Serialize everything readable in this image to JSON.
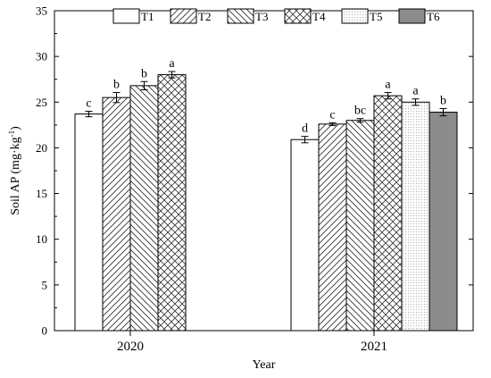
{
  "chart_data": {
    "type": "bar",
    "xlabel": "Year",
    "ylabel": "Soil AP (mg·kg",
    "ylabel_sup": "-1",
    "ylabel_close": ")",
    "ylim": [
      0,
      35
    ],
    "yticks": [
      0,
      5,
      10,
      15,
      20,
      25,
      30,
      35
    ],
    "categories": [
      "2020",
      "2021"
    ],
    "legend_placement": "top",
    "series": [
      {
        "name": "T1",
        "pattern": "none",
        "values": [
          23.7,
          20.9
        ],
        "errors": [
          0.3,
          0.35
        ],
        "letters": [
          "c",
          "d"
        ]
      },
      {
        "name": "T2",
        "pattern": "diag-up",
        "values": [
          25.5,
          22.6
        ],
        "errors": [
          0.55,
          0.15
        ],
        "letters": [
          "b",
          "c"
        ]
      },
      {
        "name": "T3",
        "pattern": "diag-down",
        "values": [
          26.8,
          23.0
        ],
        "errors": [
          0.45,
          0.2
        ],
        "letters": [
          "b",
          "bc"
        ]
      },
      {
        "name": "T4",
        "pattern": "crosshatch",
        "values": [
          28.0,
          25.7
        ],
        "errors": [
          0.35,
          0.35
        ],
        "letters": [
          "a",
          "a"
        ]
      },
      {
        "name": "T5",
        "pattern": "dots",
        "values": [
          null,
          25.0
        ],
        "errors": [
          null,
          0.35
        ],
        "letters": [
          null,
          "a"
        ]
      },
      {
        "name": "T6",
        "pattern": "solid-gray",
        "values": [
          null,
          23.9
        ],
        "errors": [
          null,
          0.4
        ],
        "letters": [
          null,
          "b"
        ]
      }
    ]
  }
}
